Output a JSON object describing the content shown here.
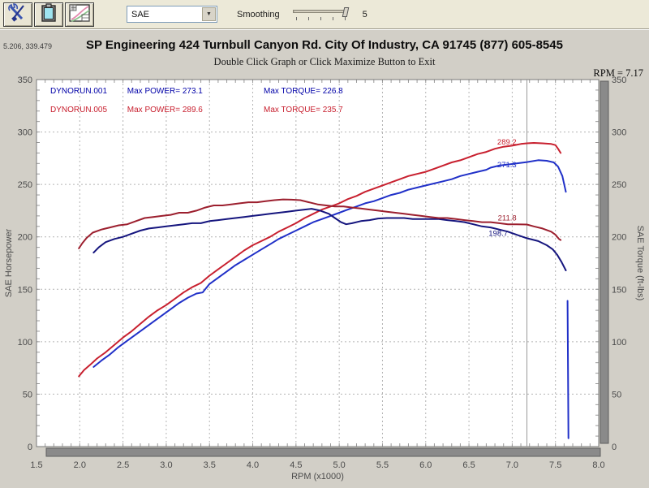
{
  "toolbar": {
    "buttons": [
      {
        "name": "tools"
      },
      {
        "name": "clipboard"
      },
      {
        "name": "graph-settings"
      }
    ],
    "correction_dropdown": {
      "value": "SAE"
    },
    "smoothing": {
      "label": "Smoothing",
      "value": "5"
    }
  },
  "chart_header": {
    "cursor_readout": "5.206, 339.479",
    "title": "SP Engineering 424 Turnbull Canyon Rd. City Of Industry, CA 91745 (877) 605-8545",
    "subtitle": "Double Click Graph or Click Maximize Button to Exit",
    "rpm_readout": "RPM = 7.17"
  },
  "legend": {
    "runs": [
      {
        "file": "DYNORUN.001",
        "max_power_label": "Max POWER= 273.1",
        "max_torque_label": "Max TORQUE= 226.8"
      },
      {
        "file": "DYNORUN.005",
        "max_power_label": "Max POWER= 289.6",
        "max_torque_label": "Max TORQUE= 235.7"
      }
    ]
  },
  "colors": {
    "blue_power": "#2030c8",
    "red_power": "#c8202f",
    "blue_torque": "#15157e",
    "red_torque": "#9c1f2e",
    "grid": "#b4b4b4",
    "plot_border": "#7a7a7a",
    "cursor_line": "#9a9a9a",
    "scrollbar": "#8a8a8a",
    "scrollbar_edge": "#5f5f5f",
    "tick_text": "#4b4b4b"
  },
  "chart_data": {
    "type": "line",
    "xlabel": "RPM (x1000)",
    "ylabel_left": "SAE Horsepower",
    "ylabel_right": "SAE Torque (ft-lbs)",
    "xlim": [
      1.5,
      8.0
    ],
    "ylim": [
      0,
      350
    ],
    "x_ticks": [
      1.5,
      2.0,
      2.5,
      3.0,
      3.5,
      4.0,
      4.5,
      5.0,
      5.5,
      6.0,
      6.5,
      7.0,
      7.5,
      8.0
    ],
    "y_ticks": [
      0,
      50,
      100,
      150,
      200,
      250,
      300,
      350
    ],
    "grid": true,
    "cursor_rpm": 7.17,
    "cursor_labels": [
      {
        "text": "289.2",
        "color_key": "red_power",
        "x": 7.05,
        "value": 288
      },
      {
        "text": "271.3",
        "color_key": "blue_power",
        "x": 7.05,
        "value": 266.5
      },
      {
        "text": "211.8",
        "color_key": "red_torque",
        "x": 7.05,
        "value": 215.5
      },
      {
        "text": "198.7",
        "color_key": "blue_torque",
        "x": 6.95,
        "value": 201
      }
    ],
    "series": [
      {
        "name": "DYNORUN.001 SAE Horsepower",
        "color_key": "blue_power",
        "axis": "left",
        "points": [
          [
            2.16,
            76
          ],
          [
            2.25,
            82
          ],
          [
            2.35,
            88
          ],
          [
            2.45,
            95
          ],
          [
            2.55,
            101
          ],
          [
            2.65,
            107
          ],
          [
            2.75,
            113
          ],
          [
            2.85,
            119
          ],
          [
            2.95,
            125
          ],
          [
            3.05,
            131
          ],
          [
            3.15,
            137
          ],
          [
            3.25,
            142
          ],
          [
            3.35,
            146
          ],
          [
            3.42,
            147
          ],
          [
            3.5,
            155
          ],
          [
            3.6,
            161
          ],
          [
            3.7,
            167
          ],
          [
            3.8,
            173
          ],
          [
            3.9,
            178
          ],
          [
            4.0,
            183
          ],
          [
            4.1,
            188
          ],
          [
            4.2,
            193
          ],
          [
            4.3,
            198
          ],
          [
            4.4,
            202
          ],
          [
            4.5,
            206
          ],
          [
            4.6,
            210
          ],
          [
            4.7,
            214
          ],
          [
            4.8,
            217
          ],
          [
            4.9,
            220
          ],
          [
            5.0,
            223
          ],
          [
            5.1,
            226
          ],
          [
            5.2,
            229
          ],
          [
            5.3,
            232
          ],
          [
            5.4,
            234
          ],
          [
            5.5,
            237
          ],
          [
            5.6,
            240
          ],
          [
            5.7,
            242
          ],
          [
            5.8,
            245
          ],
          [
            5.9,
            247
          ],
          [
            6.0,
            249
          ],
          [
            6.1,
            251
          ],
          [
            6.2,
            253
          ],
          [
            6.3,
            255
          ],
          [
            6.4,
            258
          ],
          [
            6.5,
            260
          ],
          [
            6.6,
            262
          ],
          [
            6.7,
            264
          ],
          [
            6.75,
            266
          ],
          [
            6.85,
            268
          ],
          [
            6.95,
            269
          ],
          [
            7.05,
            270
          ],
          [
            7.17,
            271.3
          ],
          [
            7.3,
            273.1
          ],
          [
            7.4,
            272.6
          ],
          [
            7.48,
            271
          ],
          [
            7.53,
            267
          ],
          [
            7.58,
            258
          ],
          [
            7.62,
            243
          ]
        ]
      },
      {
        "name": "DYNORUN.005 SAE Horsepower",
        "color_key": "red_power",
        "axis": "left",
        "points": [
          [
            1.99,
            67
          ],
          [
            2.05,
            73
          ],
          [
            2.12,
            78
          ],
          [
            2.2,
            84
          ],
          [
            2.3,
            90
          ],
          [
            2.4,
            97
          ],
          [
            2.5,
            104
          ],
          [
            2.6,
            110
          ],
          [
            2.7,
            117
          ],
          [
            2.8,
            124
          ],
          [
            2.9,
            130
          ],
          [
            3.0,
            135
          ],
          [
            3.1,
            141
          ],
          [
            3.2,
            147
          ],
          [
            3.3,
            152
          ],
          [
            3.4,
            156
          ],
          [
            3.5,
            163
          ],
          [
            3.6,
            169
          ],
          [
            3.7,
            175
          ],
          [
            3.8,
            181
          ],
          [
            3.9,
            187
          ],
          [
            4.0,
            192
          ],
          [
            4.1,
            196
          ],
          [
            4.2,
            200
          ],
          [
            4.3,
            205
          ],
          [
            4.4,
            209
          ],
          [
            4.5,
            213
          ],
          [
            4.6,
            218
          ],
          [
            4.7,
            222
          ],
          [
            4.8,
            226
          ],
          [
            4.9,
            229
          ],
          [
            5.0,
            232
          ],
          [
            5.1,
            236
          ],
          [
            5.2,
            239
          ],
          [
            5.3,
            243
          ],
          [
            5.4,
            246
          ],
          [
            5.5,
            249
          ],
          [
            5.6,
            252
          ],
          [
            5.7,
            255
          ],
          [
            5.8,
            258
          ],
          [
            5.9,
            260
          ],
          [
            6.0,
            262
          ],
          [
            6.1,
            265
          ],
          [
            6.2,
            268
          ],
          [
            6.3,
            271
          ],
          [
            6.4,
            273
          ],
          [
            6.5,
            276
          ],
          [
            6.6,
            279
          ],
          [
            6.7,
            281
          ],
          [
            6.8,
            284
          ],
          [
            6.9,
            286
          ],
          [
            7.0,
            287
          ],
          [
            7.1,
            288.6
          ],
          [
            7.17,
            289.2
          ],
          [
            7.25,
            289.6
          ],
          [
            7.35,
            289.2
          ],
          [
            7.45,
            288.6
          ],
          [
            7.5,
            287.5
          ],
          [
            7.53,
            284
          ],
          [
            7.56,
            280
          ]
        ]
      },
      {
        "name": "DYNORUN.001 SAE Torque",
        "color_key": "blue_torque",
        "axis": "right",
        "points": [
          [
            2.16,
            185
          ],
          [
            2.22,
            190
          ],
          [
            2.3,
            195
          ],
          [
            2.4,
            198
          ],
          [
            2.5,
            200
          ],
          [
            2.6,
            203
          ],
          [
            2.7,
            206
          ],
          [
            2.8,
            208
          ],
          [
            2.9,
            209
          ],
          [
            3.0,
            210
          ],
          [
            3.1,
            211
          ],
          [
            3.2,
            212
          ],
          [
            3.3,
            213
          ],
          [
            3.4,
            213
          ],
          [
            3.5,
            215
          ],
          [
            3.6,
            216
          ],
          [
            3.7,
            217
          ],
          [
            3.8,
            218
          ],
          [
            3.9,
            219
          ],
          [
            4.0,
            220
          ],
          [
            4.1,
            221
          ],
          [
            4.2,
            222
          ],
          [
            4.3,
            223
          ],
          [
            4.4,
            224
          ],
          [
            4.5,
            225
          ],
          [
            4.6,
            226
          ],
          [
            4.68,
            226.8
          ],
          [
            4.78,
            225
          ],
          [
            4.88,
            222
          ],
          [
            4.95,
            218
          ],
          [
            5.02,
            214
          ],
          [
            5.08,
            212
          ],
          [
            5.15,
            213
          ],
          [
            5.25,
            215
          ],
          [
            5.35,
            216
          ],
          [
            5.45,
            217.5
          ],
          [
            5.55,
            218
          ],
          [
            5.65,
            218
          ],
          [
            5.75,
            218
          ],
          [
            5.85,
            217
          ],
          [
            5.95,
            217
          ],
          [
            6.05,
            217
          ],
          [
            6.15,
            217
          ],
          [
            6.25,
            216
          ],
          [
            6.35,
            215
          ],
          [
            6.45,
            214
          ],
          [
            6.55,
            212
          ],
          [
            6.65,
            210
          ],
          [
            6.75,
            209
          ],
          [
            6.85,
            207
          ],
          [
            6.95,
            205
          ],
          [
            7.05,
            202
          ],
          [
            7.17,
            198.7
          ],
          [
            7.3,
            196
          ],
          [
            7.4,
            192
          ],
          [
            7.47,
            188
          ],
          [
            7.52,
            183
          ],
          [
            7.57,
            176
          ],
          [
            7.62,
            168
          ]
        ]
      },
      {
        "name": "DYNORUN.005 SAE Torque",
        "color_key": "red_torque",
        "axis": "right",
        "points": [
          [
            1.99,
            189
          ],
          [
            2.03,
            194
          ],
          [
            2.08,
            199
          ],
          [
            2.15,
            204
          ],
          [
            2.25,
            207
          ],
          [
            2.35,
            209
          ],
          [
            2.45,
            211
          ],
          [
            2.55,
            212
          ],
          [
            2.65,
            215
          ],
          [
            2.75,
            218
          ],
          [
            2.85,
            219
          ],
          [
            2.95,
            220
          ],
          [
            3.05,
            221
          ],
          [
            3.15,
            223
          ],
          [
            3.25,
            223
          ],
          [
            3.35,
            225
          ],
          [
            3.45,
            228
          ],
          [
            3.55,
            230
          ],
          [
            3.65,
            230
          ],
          [
            3.75,
            231
          ],
          [
            3.85,
            232
          ],
          [
            3.95,
            233
          ],
          [
            4.05,
            233
          ],
          [
            4.15,
            234
          ],
          [
            4.25,
            235
          ],
          [
            4.35,
            235.7
          ],
          [
            4.45,
            235.5
          ],
          [
            4.55,
            235
          ],
          [
            4.65,
            233
          ],
          [
            4.75,
            231
          ],
          [
            4.85,
            230
          ],
          [
            4.95,
            229
          ],
          [
            5.05,
            229
          ],
          [
            5.15,
            228
          ],
          [
            5.25,
            227
          ],
          [
            5.35,
            226
          ],
          [
            5.45,
            225
          ],
          [
            5.55,
            224
          ],
          [
            5.65,
            223
          ],
          [
            5.75,
            222
          ],
          [
            5.85,
            221
          ],
          [
            5.95,
            220
          ],
          [
            6.05,
            219
          ],
          [
            6.15,
            218
          ],
          [
            6.25,
            218
          ],
          [
            6.35,
            217
          ],
          [
            6.45,
            216
          ],
          [
            6.55,
            215
          ],
          [
            6.65,
            214
          ],
          [
            6.75,
            214
          ],
          [
            6.85,
            213
          ],
          [
            6.95,
            212
          ],
          [
            7.05,
            212
          ],
          [
            7.17,
            211.8
          ],
          [
            7.25,
            210
          ],
          [
            7.35,
            208
          ],
          [
            7.45,
            205
          ],
          [
            7.5,
            202
          ],
          [
            7.54,
            198
          ],
          [
            7.56,
            197
          ]
        ]
      },
      {
        "name": "DYNORUN.001 dropout tail",
        "color_key": "blue_power",
        "axis": "left",
        "points": [
          [
            7.64,
            139
          ],
          [
            7.645,
            70
          ],
          [
            7.65,
            8
          ]
        ]
      }
    ]
  }
}
